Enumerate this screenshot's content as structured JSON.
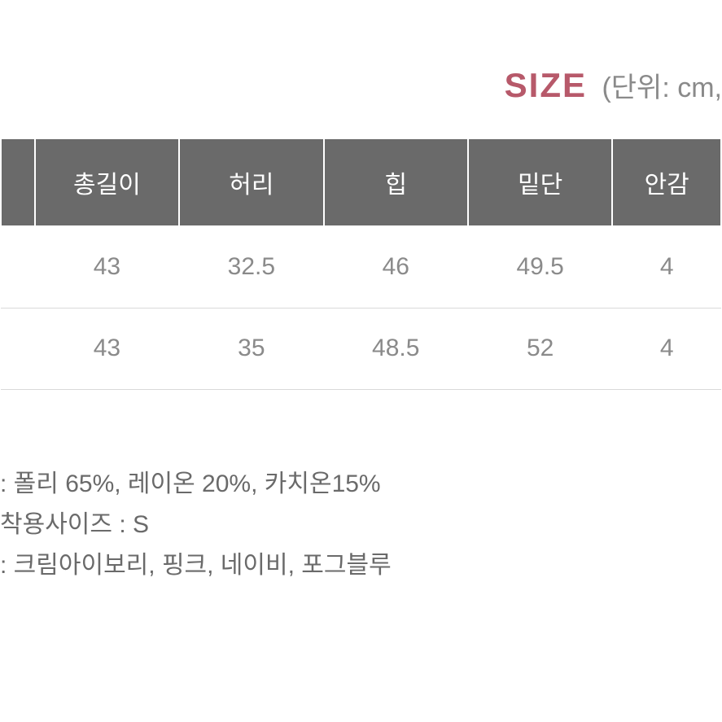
{
  "title": {
    "size_label": "SIZE",
    "size_color": "#b7596a",
    "size_fontsize": 42,
    "unit_label": "(단위: cm,",
    "unit_color": "#8a8a8a",
    "unit_fontsize": 34
  },
  "table": {
    "header_bg": "#6a6a6a",
    "header_text_color": "#ffffff",
    "header_fontsize": 30,
    "cell_fontsize": 30,
    "cell_text_color": "#8a8a8a",
    "row_border_color": "#d9d9d9",
    "columns": [
      "",
      "총길이",
      "허리",
      "힙",
      "밑단",
      "안감"
    ],
    "rows": [
      [
        "",
        "43",
        "32.5",
        "46",
        "49.5",
        "4"
      ],
      [
        "",
        "43",
        "35",
        "48.5",
        "52",
        "4"
      ]
    ]
  },
  "info": {
    "fontsize": 30,
    "text_color": "#6a6a6a",
    "lines": [
      ": 폴리 65%, 레이온 20%, 카치온15%",
      "착용사이즈 : S",
      ": 크림아이보리, 핑크, 네이비, 포그블루"
    ]
  }
}
